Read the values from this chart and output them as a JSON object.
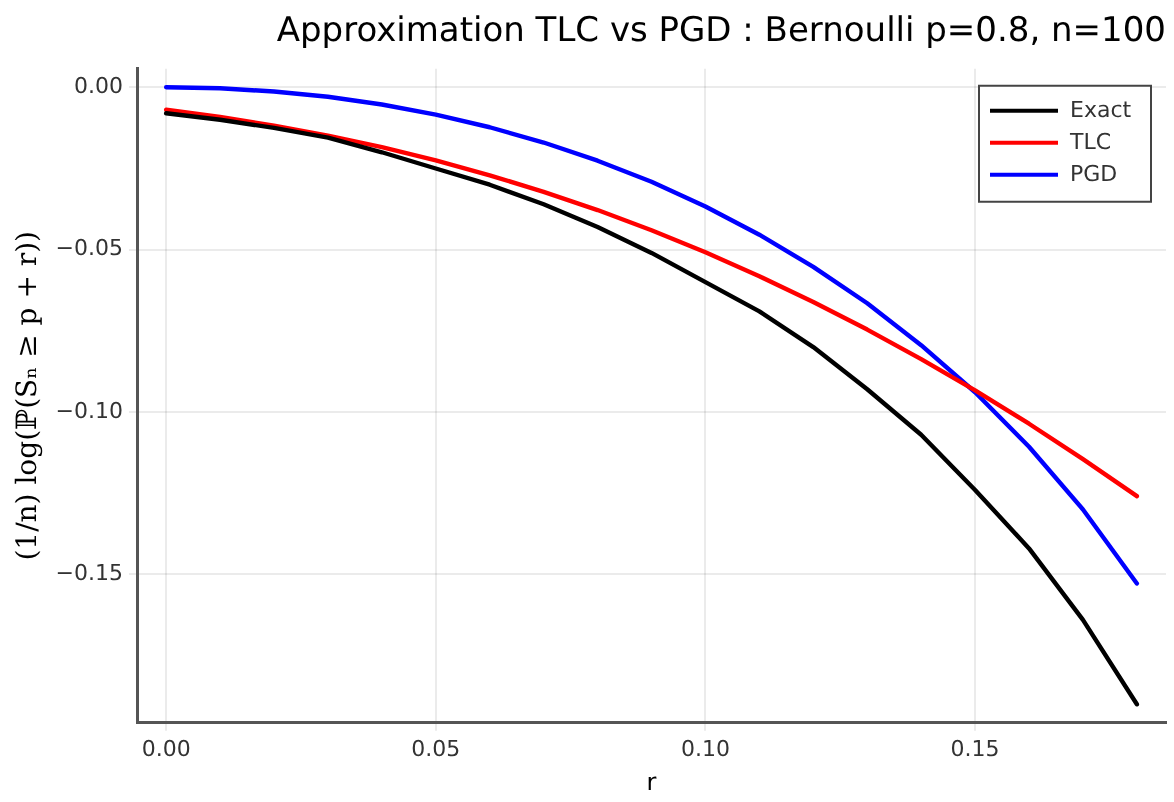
{
  "chart_data": {
    "type": "line",
    "title": "Approximation TLC vs PGD : Bernoulli p=0.8, n=100",
    "xlabel": "r",
    "ylabel": "(1/n) log(ℙ(Sₙ ≥ p + r))",
    "x": [
      0,
      0.01,
      0.02,
      0.03,
      0.04,
      0.05,
      0.06,
      0.07,
      0.08,
      0.09,
      0.1,
      0.11,
      0.12,
      0.13,
      0.14,
      0.15,
      0.16,
      0.17,
      0.18
    ],
    "series": [
      {
        "name": "Exact",
        "color": "#000000",
        "values": [
          -0.008,
          -0.01,
          -0.0125,
          -0.0155,
          -0.02,
          -0.025,
          -0.03,
          -0.036,
          -0.043,
          -0.051,
          -0.06,
          -0.069,
          -0.08,
          -0.093,
          -0.107,
          -0.124,
          -0.142,
          -0.164,
          -0.19
        ]
      },
      {
        "name": "TLC",
        "color": "#ff0000",
        "values": [
          -0.0069,
          -0.0091,
          -0.0118,
          -0.0149,
          -0.0184,
          -0.0225,
          -0.0271,
          -0.0322,
          -0.0378,
          -0.044,
          -0.0508,
          -0.0582,
          -0.0661,
          -0.0746,
          -0.0837,
          -0.0933,
          -0.1036,
          -0.1145,
          -0.1259
        ]
      },
      {
        "name": "PGD",
        "color": "#0000ff",
        "values": [
          0,
          -0.0003,
          -0.0013,
          -0.0029,
          -0.0053,
          -0.0084,
          -0.0123,
          -0.017,
          -0.0226,
          -0.0291,
          -0.0367,
          -0.0454,
          -0.0553,
          -0.0665,
          -0.0794,
          -0.0939,
          -0.1107,
          -0.13,
          -0.1528
        ]
      }
    ],
    "xlim": [
      -0.0054,
      0.1854
    ],
    "ylim": [
      -0.1957,
      0.0057
    ],
    "xticks": [
      {
        "value": 0,
        "label": "0.00"
      },
      {
        "value": 0.05,
        "label": "0.05"
      },
      {
        "value": 0.1,
        "label": "0.10"
      },
      {
        "value": 0.15,
        "label": "0.15"
      }
    ],
    "yticks": [
      {
        "value": 0,
        "label": "0.00"
      },
      {
        "value": -0.05,
        "label": "−0.05"
      },
      {
        "value": -0.1,
        "label": "−0.10"
      },
      {
        "value": -0.15,
        "label": "−0.15"
      }
    ],
    "grid": true,
    "legend": "top right",
    "marker": "none",
    "line_style": "solid"
  }
}
